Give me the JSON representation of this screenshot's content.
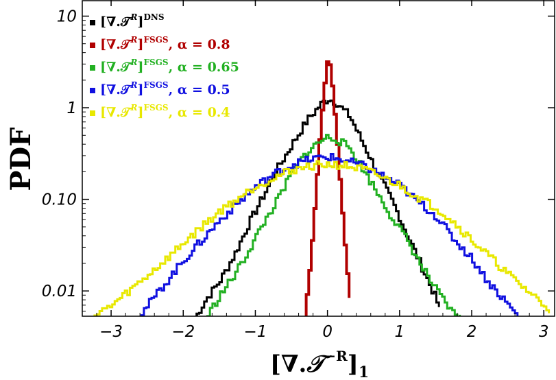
{
  "chart_data": {
    "type": "line",
    "xlabel": "[∇.𝒯^R]_1",
    "ylabel": "PDF",
    "xlim": [
      -3.4,
      3.15
    ],
    "ylim": [
      0.0053,
      15
    ],
    "yscale": "log",
    "x_ticks": [
      -3,
      -2,
      -1,
      0,
      1,
      2,
      3
    ],
    "x_tick_labels": [
      "−3",
      "−2",
      "−1",
      "0",
      "1",
      "2",
      "3"
    ],
    "y_ticks": [
      0.01,
      0.1,
      1,
      10
    ],
    "y_tick_labels": [
      "0.01",
      "0.10",
      "1",
      "10"
    ],
    "grid": false,
    "legend_position": "top-left",
    "series": [
      {
        "name": "[∇.𝒯^R]^DNS",
        "legend": {
          "bracket": "[∇.𝒯",
          "sup_r": "R",
          "close": "]",
          "sup_tag": "DNS",
          "suffix": ""
        },
        "color": "#000000",
        "x": [
          -1.85,
          -1.7,
          -1.5,
          -1.3,
          -1.1,
          -0.9,
          -0.7,
          -0.5,
          -0.3,
          -0.1,
          0.0,
          0.1,
          0.3,
          0.5,
          0.7,
          0.9,
          1.1,
          1.3,
          1.5,
          1.55
        ],
        "y": [
          0.005,
          0.008,
          0.013,
          0.025,
          0.055,
          0.11,
          0.22,
          0.4,
          0.72,
          1.1,
          1.25,
          1.15,
          0.8,
          0.38,
          0.18,
          0.09,
          0.04,
          0.018,
          0.008,
          0.006
        ]
      },
      {
        "name": "[∇.𝒯^R]^FSGS, α = 0.8",
        "legend": {
          "bracket": "[∇.𝒯",
          "sup_r": "R",
          "close": "]",
          "sup_tag": "FSGS",
          "suffix": ", α = 0.8"
        },
        "color": "#b00000",
        "x": [
          -0.33,
          -0.25,
          -0.18,
          -0.12,
          -0.06,
          0.0,
          0.06,
          0.12,
          0.18,
          0.25,
          0.33
        ],
        "y": [
          0.005,
          0.02,
          0.1,
          0.45,
          1.6,
          4.0,
          1.6,
          0.45,
          0.1,
          0.02,
          0.005
        ]
      },
      {
        "name": "[∇.𝒯^R]^FSGS, α = 0.65",
        "legend": {
          "bracket": "[∇.𝒯",
          "sup_r": "R",
          "close": "]",
          "sup_tag": "FSGS",
          "suffix": ", α = 0.65"
        },
        "color": "#22b022",
        "x": [
          -1.7,
          -1.5,
          -1.3,
          -1.1,
          -0.9,
          -0.7,
          -0.5,
          -0.3,
          -0.1,
          0.0,
          0.1,
          0.3,
          0.5,
          0.7,
          0.9,
          1.1,
          1.3,
          1.5,
          1.7,
          1.85
        ],
        "y": [
          0.005,
          0.009,
          0.015,
          0.028,
          0.055,
          0.1,
          0.2,
          0.33,
          0.44,
          0.48,
          0.46,
          0.36,
          0.2,
          0.11,
          0.06,
          0.035,
          0.018,
          0.01,
          0.006,
          0.005
        ]
      },
      {
        "name": "[∇.𝒯^R]^FSGS, α = 0.5",
        "legend": {
          "bracket": "[∇.𝒯",
          "sup_r": "R",
          "close": "]",
          "sup_tag": "FSGS",
          "suffix": ", α = 0.5"
        },
        "color": "#1010e0",
        "x": [
          -2.65,
          -2.5,
          -2.2,
          -2.0,
          -1.7,
          -1.5,
          -1.2,
          -1.0,
          -0.7,
          -0.5,
          -0.2,
          0.0,
          0.2,
          0.5,
          0.7,
          1.0,
          1.2,
          1.5,
          1.7,
          2.0,
          2.2,
          2.5,
          2.65
        ],
        "y": [
          0.005,
          0.007,
          0.014,
          0.022,
          0.04,
          0.06,
          0.1,
          0.14,
          0.2,
          0.24,
          0.28,
          0.29,
          0.27,
          0.23,
          0.19,
          0.14,
          0.1,
          0.065,
          0.04,
          0.022,
          0.013,
          0.007,
          0.005
        ]
      },
      {
        "name": "[∇.𝒯^R]^FSGS, α = 0.4",
        "legend": {
          "bracket": "[∇.𝒯",
          "sup_r": "R",
          "close": "]",
          "sup_tag": "FSGS",
          "suffix": ", α = 0.4"
        },
        "color": "#e8e800",
        "x": [
          -3.3,
          -3.0,
          -2.7,
          -2.5,
          -2.2,
          -2.0,
          -1.7,
          -1.5,
          -1.2,
          -1.0,
          -0.7,
          -0.5,
          -0.2,
          0.0,
          0.2,
          0.5,
          0.7,
          1.0,
          1.2,
          1.5,
          1.7,
          2.0,
          2.2,
          2.5,
          2.7,
          3.0,
          3.1
        ],
        "y": [
          0.005,
          0.007,
          0.011,
          0.015,
          0.024,
          0.034,
          0.055,
          0.075,
          0.11,
          0.14,
          0.18,
          0.21,
          0.235,
          0.24,
          0.235,
          0.21,
          0.18,
          0.14,
          0.11,
          0.08,
          0.06,
          0.035,
          0.025,
          0.015,
          0.011,
          0.007,
          0.006
        ]
      }
    ]
  }
}
